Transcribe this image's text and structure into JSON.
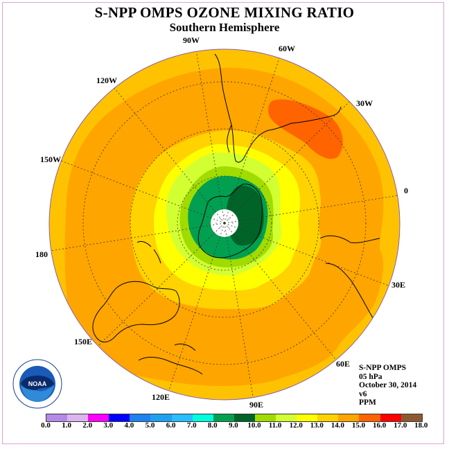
{
  "title": "S-NPP OMPS OZONE MIXING RATIO",
  "subtitle": "Southern Hemisphere",
  "longitude_labels": {
    "w90": "90W",
    "w60": "60W",
    "w30": "30W",
    "e0": "0",
    "e30": "30E",
    "e60": "60E",
    "e90": "90E",
    "e120": "120E",
    "e150": "150E",
    "d180": "180",
    "w150": "150W",
    "w120": "120W"
  },
  "info": {
    "instrument": "S-NPP OMPS",
    "level": "05 hPa",
    "date": "October 30, 2014",
    "version": "v6",
    "units": "PPM"
  },
  "logo": {
    "icon": "noaa-logo-icon",
    "text": "NOAA"
  },
  "colorbar": {
    "ticks": [
      "0.0",
      "1.0",
      "2.0",
      "3.0",
      "4.0",
      "5.0",
      "6.0",
      "7.0",
      "8.0",
      "9.0",
      "10.0",
      "11.0",
      "12.0",
      "13.0",
      "14.0",
      "15.0",
      "16.0",
      "17.0",
      "18.0"
    ],
    "colors": [
      "#b48ae6",
      "#dcb4f0",
      "#ff00ff",
      "#0000ff",
      "#1e82f0",
      "#1ea0f0",
      "#28beff",
      "#00ffdc",
      "#00a050",
      "#006428",
      "#a0dc00",
      "#d2ff32",
      "#ffff00",
      "#ffd200",
      "#ffa500",
      "#ff6400",
      "#ff0000",
      "#8c5a32"
    ]
  },
  "map_colors": {
    "background_orange": "#ffa500",
    "outer_ring": "#ffc200",
    "band_13": "#ffd200",
    "band_12": "#ffff00",
    "band_11": "#d2ff32",
    "band_10": "#a0dc00",
    "band_9": "#00a050",
    "band_8": "#006428",
    "hot_spot": "#ff6400",
    "pole_missing": "#ffffff"
  }
}
